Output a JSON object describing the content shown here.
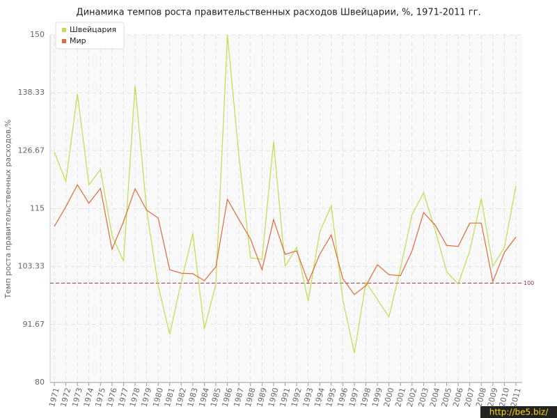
{
  "chart_data": {
    "type": "line",
    "title": "Динамика темпов роста правительственных расходов Швейцарии, %, 1971-2011 гг.",
    "y_label": "Темп роста правительственных расходов,%",
    "categories": [
      "1971",
      "1972",
      "1973",
      "1974",
      "1975",
      "1976",
      "1977",
      "1978",
      "1979",
      "1980",
      "1981",
      "1982",
      "1983",
      "1984",
      "1985",
      "1986",
      "1987",
      "1988",
      "1989",
      "1990",
      "1991",
      "1992",
      "1993",
      "1994",
      "1995",
      "1996",
      "1997",
      "1998",
      "1999",
      "2000",
      "2001",
      "2002",
      "2003",
      "2004",
      "2005",
      "2006",
      "2007",
      "2008",
      "2009",
      "2010",
      "2011"
    ],
    "series": [
      {
        "name": "Швейцария",
        "color": "#c2dc4a",
        "values": [
          126.4,
          120.5,
          138.1,
          119.8,
          122.9,
          109.6,
          104.4,
          139.8,
          114.7,
          99.5,
          89.7,
          100.2,
          110.0,
          90.8,
          99.8,
          150,
          125.5,
          105.1,
          104.8,
          128.5,
          103.4,
          107.2,
          96.4,
          110.3,
          115.6,
          96.7,
          85.9,
          100.2,
          96.7,
          93.2,
          103.0,
          113.8,
          118.2,
          110.7,
          102.3,
          99.8,
          106.5,
          117.0,
          103.4,
          107.2,
          119.6
        ]
      },
      {
        "name": "Мир",
        "color": "#e0683a",
        "values": [
          111.4,
          115.4,
          119.8,
          116.1,
          119.1,
          106.8,
          112.4,
          119.0,
          114.7,
          113.1,
          102.7,
          102.0,
          101.9,
          100.5,
          103.3,
          116.9,
          112.8,
          108.9,
          102.7,
          112.8,
          105.8,
          106.5,
          100.2,
          105.8,
          109.7,
          100.9,
          97.7,
          99.5,
          103.7,
          101.7,
          101.5,
          106.5,
          114.2,
          111.7,
          107.6,
          107.4,
          112.1,
          112.1,
          100.3,
          106.2,
          109.3
        ]
      }
    ],
    "ylim": [
      80,
      150
    ],
    "yticks": [
      80,
      91.67,
      103.33,
      115,
      126.67,
      138.33,
      150
    ],
    "reference_line": 100,
    "reference_color": "#a0303a",
    "grid": true,
    "legend": "top-left",
    "watermark": "http://be5.biz/"
  }
}
